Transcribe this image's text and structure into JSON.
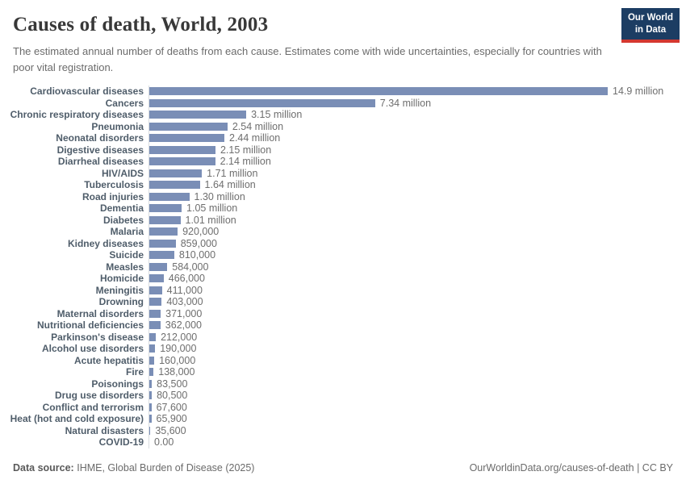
{
  "header": {
    "title": "Causes of death, World, 2003",
    "subtitle": "The estimated annual number of deaths from each cause. Estimates come with wide uncertainties, especially for countries with poor vital registration.",
    "logo": {
      "line1": "Our World",
      "line2": "in Data"
    }
  },
  "colors": {
    "bar": "#7a8eb6",
    "category_label": "#4f5d6a",
    "value_label": "#6e6e6e",
    "axis_line": "#d9dde0",
    "logo_navy": "#1c3d63",
    "logo_red": "#d43830"
  },
  "chart_data": {
    "type": "bar",
    "orientation": "horizontal",
    "title": "Causes of death, World, 2003",
    "xlabel": "",
    "ylabel": "",
    "unit": "deaths (annual)",
    "xlim": [
      0,
      14.9
    ],
    "grid": false,
    "legend": false,
    "values_unit_note": "values expressed in millions of deaths",
    "categories": [
      "Cardiovascular diseases",
      "Cancers",
      "Chronic respiratory diseases",
      "Pneumonia",
      "Neonatal disorders",
      "Digestive diseases",
      "Diarrheal diseases",
      "HIV/AIDS",
      "Tuberculosis",
      "Road injuries",
      "Dementia",
      "Diabetes",
      "Malaria",
      "Kidney diseases",
      "Suicide",
      "Measles",
      "Homicide",
      "Meningitis",
      "Drowning",
      "Maternal disorders",
      "Nutritional deficiencies",
      "Parkinson's disease",
      "Alcohol use disorders",
      "Acute hepatitis",
      "Fire",
      "Poisonings",
      "Drug use disorders",
      "Conflict and terrorism",
      "Heat (hot and cold exposure)",
      "Natural disasters",
      "COVID-19"
    ],
    "values": [
      14.9,
      7.34,
      3.15,
      2.54,
      2.44,
      2.15,
      2.14,
      1.71,
      1.64,
      1.3,
      1.05,
      1.01,
      0.92,
      0.859,
      0.81,
      0.584,
      0.466,
      0.411,
      0.403,
      0.371,
      0.362,
      0.212,
      0.19,
      0.16,
      0.138,
      0.0835,
      0.0805,
      0.0676,
      0.0659,
      0.0356,
      0
    ],
    "value_labels": [
      "14.9 million",
      "7.34 million",
      "3.15 million",
      "2.54 million",
      "2.44 million",
      "2.15 million",
      "2.14 million",
      "1.71 million",
      "1.64 million",
      "1.30 million",
      "1.05 million",
      "1.01 million",
      "920,000",
      "859,000",
      "810,000",
      "584,000",
      "466,000",
      "411,000",
      "403,000",
      "371,000",
      "362,000",
      "212,000",
      "190,000",
      "160,000",
      "138,000",
      "83,500",
      "80,500",
      "67,600",
      "65,900",
      "35,600",
      "0.00"
    ]
  },
  "footer": {
    "source_label": "Data source:",
    "source_value": "IHME, Global Burden of Disease (2025)",
    "credit": "OurWorldinData.org/causes-of-death | CC BY"
  }
}
